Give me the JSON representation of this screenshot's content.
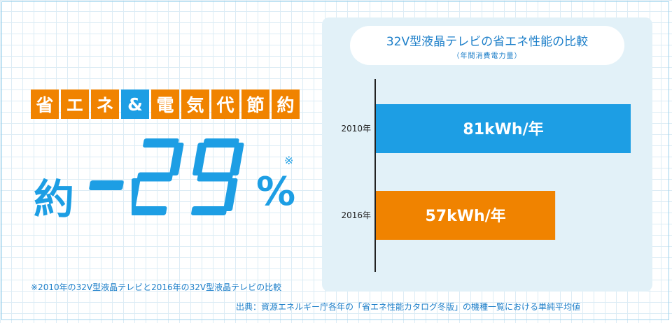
{
  "headline": {
    "chars": [
      {
        "text": "省",
        "color": "#f08300"
      },
      {
        "text": "エ",
        "color": "#f08300"
      },
      {
        "text": "ネ",
        "color": "#f08300"
      },
      {
        "text": "&",
        "color": "#1d9ee4"
      },
      {
        "text": "電",
        "color": "#f08300"
      },
      {
        "text": "気",
        "color": "#f08300"
      },
      {
        "text": "代",
        "color": "#f08300"
      },
      {
        "text": "節",
        "color": "#f08300"
      },
      {
        "text": "約",
        "color": "#f08300"
      }
    ]
  },
  "saving": {
    "prefix": "約",
    "value": "-29",
    "unit": "%",
    "mark": "※"
  },
  "footnote": "※2010年の32V型液晶テレビと2016年の32V型液晶テレビの比較",
  "source": "出典：資源エネルギー庁各年の「省エネ性能カタログ冬版」の機種一覧における単純平均値",
  "colors": {
    "blue": "#1d9ee4",
    "orange": "#f08300",
    "panel": "#e2f1f8",
    "title": "#1d7fc9"
  },
  "chart_data": {
    "type": "bar",
    "orientation": "horizontal",
    "title": "32V型液晶テレビの省エネ性能の比較",
    "subtitle": "（年間消費電力量）",
    "categories": [
      "2010年",
      "2016年"
    ],
    "values": [
      81,
      57
    ],
    "value_labels": [
      "81kWh/年",
      "57kWh/年"
    ],
    "bar_colors": [
      "#1d9ee4",
      "#f08300"
    ],
    "xlim": [
      0,
      81
    ],
    "grid": false
  }
}
